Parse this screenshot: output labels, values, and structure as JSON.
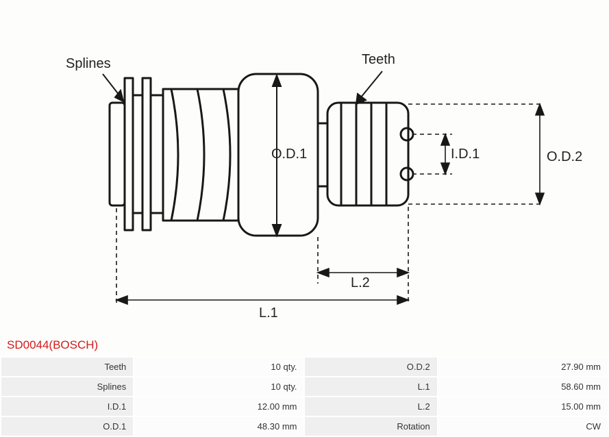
{
  "part": {
    "code": "SD0044(BOSCH)",
    "title_color": "#d11b1b"
  },
  "diagram": {
    "labels": {
      "splines": "Splines",
      "teeth": "Teeth",
      "od1": "O.D.1",
      "od2": "O.D.2",
      "id1": "I.D.1",
      "l1": "L.1",
      "l2": "L.2"
    },
    "style": {
      "outline_stroke": "#181818",
      "outline_width": 3,
      "dim_stroke": "#181818",
      "dim_width": 1.5,
      "dash": "5,5",
      "label_fontsize": 20,
      "label_color": "#181818",
      "bg": "#fdfdfb"
    }
  },
  "specs": {
    "rows": [
      {
        "k1": "Teeth",
        "v1": "10 qty.",
        "k2": "O.D.2",
        "v2": "27.90 mm"
      },
      {
        "k1": "Splines",
        "v1": "10 qty.",
        "k2": "L.1",
        "v2": "58.60 mm"
      },
      {
        "k1": "I.D.1",
        "v1": "12.00 mm",
        "k2": "L.2",
        "v2": "15.00 mm"
      },
      {
        "k1": "O.D.1",
        "v1": "48.30 mm",
        "k2": "Rotation",
        "v2": "CW"
      }
    ],
    "style": {
      "row_bg": "#efefef",
      "val_bg": "#fcfcfc",
      "text_color": "#333333",
      "fontsize": 13
    }
  }
}
